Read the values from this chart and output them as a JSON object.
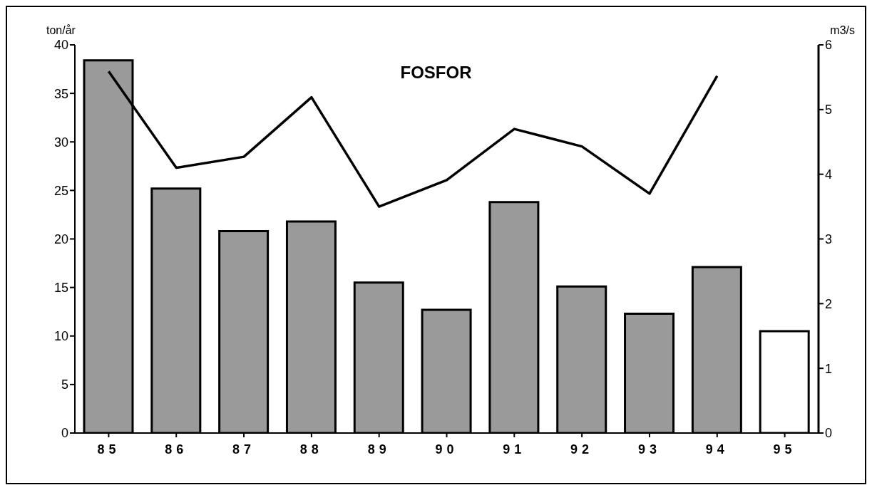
{
  "chart_data": {
    "type": "bar",
    "title": "FOSFOR",
    "ylabel": "ton/år",
    "y2label": "m3/s",
    "categories": [
      "85",
      "86",
      "87",
      "88",
      "89",
      "90",
      "91",
      "92",
      "93",
      "94",
      "95"
    ],
    "series": [
      {
        "color": "#9a9a9a",
        "colors": [
          "#9a9a9a",
          "#9a9a9a",
          "#9a9a9a",
          "#9a9a9a",
          "#9a9a9a",
          "#9a9a9a",
          "#9a9a9a",
          "#9a9a9a",
          "#9a9a9a",
          "#9a9a9a",
          "#ffffff"
        ],
        "values": [
          38.4,
          25.2,
          20.8,
          21.8,
          15.5,
          12.7,
          23.8,
          15.1,
          12.3,
          17.1,
          10.5
        ]
      },
      {
        "type": "line",
        "axis": "y2",
        "color": "#000000",
        "values": [
          5.59,
          4.1,
          4.27,
          5.19,
          3.5,
          3.91,
          4.7,
          4.43,
          3.7,
          5.52,
          null
        ]
      }
    ],
    "ylim": [
      0,
      40
    ],
    "yticks": [
      0,
      5,
      10,
      15,
      20,
      25,
      30,
      35,
      40
    ],
    "y2lim": [
      0,
      6
    ],
    "y2ticks": [
      0,
      1,
      2,
      3,
      4,
      5,
      6
    ],
    "grid": false,
    "legend": false,
    "marker": "none",
    "line_style": "solid"
  }
}
